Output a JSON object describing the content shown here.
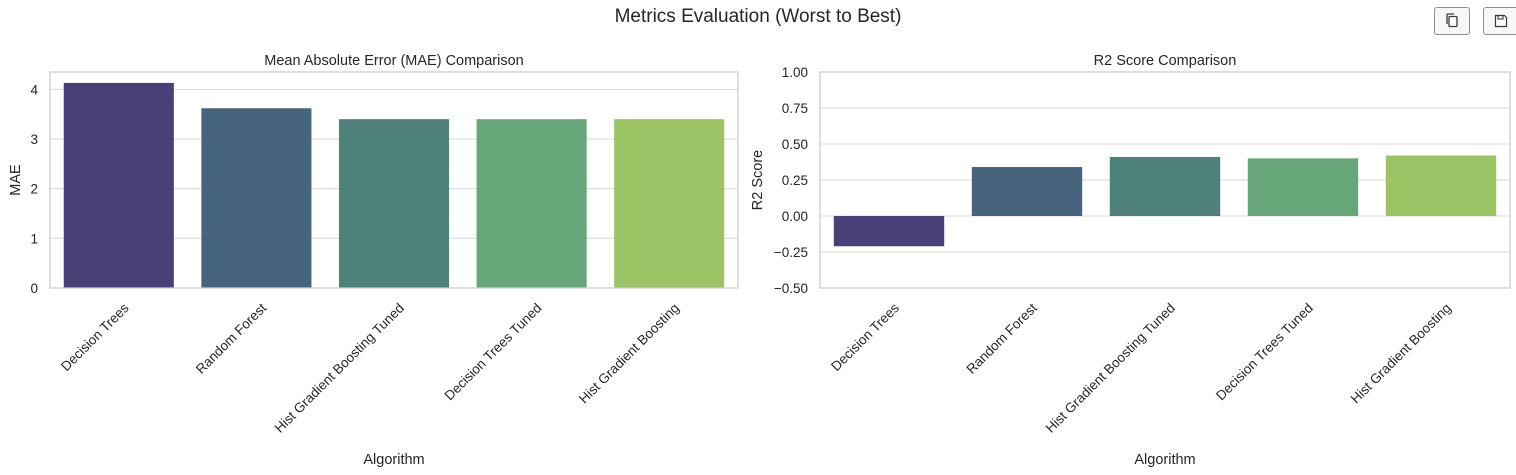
{
  "figure": {
    "title": "Metrics Evaluation (Worst to Best)"
  },
  "toolbar": {
    "copy_icon": "copy-icon",
    "save_icon": "save-icon"
  },
  "chart_data": [
    {
      "type": "bar",
      "title": "Mean Absolute Error (MAE) Comparison",
      "xlabel": "Algorithm",
      "ylabel": "MAE",
      "categories": [
        "Decision Trees",
        "Random Forest",
        "Hist Gradient Boosting Tuned",
        "Decision Trees Tuned",
        "Hist Gradient Boosting"
      ],
      "values": [
        4.13,
        3.62,
        3.4,
        3.4,
        3.4
      ],
      "ylim": [
        0,
        4.35
      ],
      "yticks": [
        0,
        1,
        2,
        3,
        4
      ],
      "ytick_labels": [
        "0",
        "1",
        "2",
        "3",
        "4"
      ],
      "colors": [
        "#4a3f76",
        "#47647e",
        "#4e8179",
        "#66a679",
        "#9bc465"
      ],
      "grid": true,
      "legend": "none"
    },
    {
      "type": "bar",
      "title": "R2 Score Comparison",
      "xlabel": "Algorithm",
      "ylabel": "R2 Score",
      "categories": [
        "Decision Trees",
        "Random Forest",
        "Hist Gradient Boosting Tuned",
        "Decision Trees Tuned",
        "Hist Gradient Boosting"
      ],
      "values": [
        -0.21,
        0.34,
        0.41,
        0.4,
        0.42
      ],
      "ylim": [
        -0.5,
        1.0
      ],
      "yticks": [
        -0.5,
        -0.25,
        0,
        0.25,
        0.5,
        0.75,
        1.0
      ],
      "ytick_labels": [
        "−0.50",
        "−0.25",
        "0.00",
        "0.25",
        "0.50",
        "0.75",
        "1.00"
      ],
      "colors": [
        "#4a3f76",
        "#47647e",
        "#4e8179",
        "#66a679",
        "#9bc465"
      ],
      "grid": true,
      "legend": "none"
    }
  ]
}
